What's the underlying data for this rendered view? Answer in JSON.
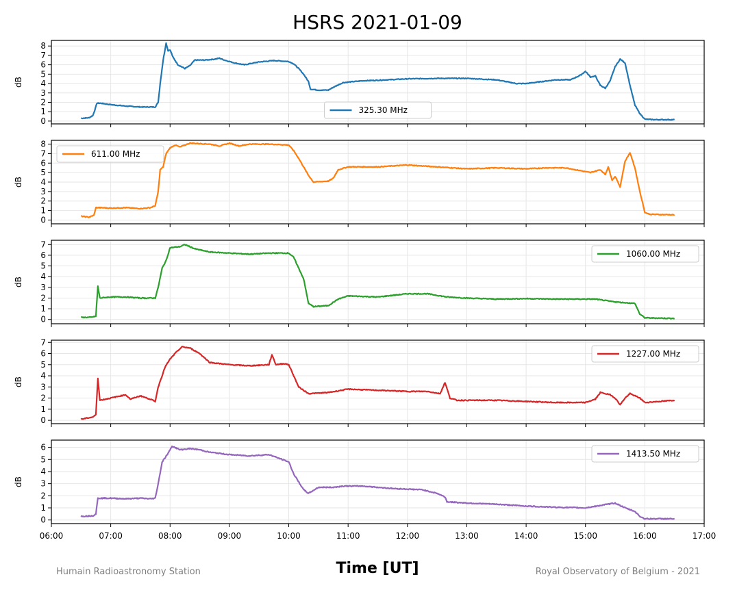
{
  "chart_data": {
    "type": "line",
    "title": "HSRS 2021-01-09",
    "xlabel": "Time [UT]",
    "x_ticks": [
      "06:00",
      "07:00",
      "08:00",
      "09:00",
      "10:00",
      "11:00",
      "12:00",
      "13:00",
      "14:00",
      "15:00",
      "16:00",
      "17:00"
    ],
    "xlim": [
      "06:00",
      "17:00"
    ],
    "grid": true,
    "footer_left": "Humain Radioastronomy Station",
    "footer_right": "Royal Observatory of Belgium - 2021",
    "panels": [
      {
        "name": "325.30 MHz",
        "color": "#1f77b4",
        "ylabel": "dB",
        "ylim": [
          -0.3,
          8.6
        ],
        "yticks": [
          0,
          1,
          2,
          3,
          4,
          5,
          6,
          7,
          8
        ],
        "legend_position": "lower-center",
        "points": [
          [
            "06:30",
            0.3
          ],
          [
            "06:38",
            0.35
          ],
          [
            "06:42",
            0.6
          ],
          [
            "06:44",
            1.2
          ],
          [
            "06:46",
            1.9
          ],
          [
            "06:50",
            1.9
          ],
          [
            "07:00",
            1.75
          ],
          [
            "07:15",
            1.6
          ],
          [
            "07:30",
            1.5
          ],
          [
            "07:45",
            1.5
          ],
          [
            "07:48",
            2.0
          ],
          [
            "07:50",
            4.0
          ],
          [
            "07:53",
            6.5
          ],
          [
            "07:56",
            8.3
          ],
          [
            "07:58",
            7.5
          ],
          [
            "08:00",
            7.6
          ],
          [
            "08:03",
            6.8
          ],
          [
            "08:08",
            6.0
          ],
          [
            "08:15",
            5.6
          ],
          [
            "08:20",
            5.9
          ],
          [
            "08:25",
            6.5
          ],
          [
            "08:35",
            6.5
          ],
          [
            "08:45",
            6.6
          ],
          [
            "08:50",
            6.7
          ],
          [
            "08:55",
            6.5
          ],
          [
            "09:05",
            6.2
          ],
          [
            "09:15",
            6.0
          ],
          [
            "09:30",
            6.3
          ],
          [
            "09:45",
            6.45
          ],
          [
            "10:00",
            6.35
          ],
          [
            "10:05",
            6.1
          ],
          [
            "10:10",
            5.6
          ],
          [
            "10:15",
            5.0
          ],
          [
            "10:20",
            4.2
          ],
          [
            "10:22",
            3.4
          ],
          [
            "10:30",
            3.3
          ],
          [
            "10:40",
            3.3
          ],
          [
            "10:45",
            3.6
          ],
          [
            "10:55",
            4.1
          ],
          [
            "11:15",
            4.3
          ],
          [
            "11:30",
            4.35
          ],
          [
            "12:00",
            4.5
          ],
          [
            "12:30",
            4.55
          ],
          [
            "13:00",
            4.55
          ],
          [
            "13:30",
            4.4
          ],
          [
            "13:50",
            4.0
          ],
          [
            "14:00",
            4.0
          ],
          [
            "14:15",
            4.2
          ],
          [
            "14:30",
            4.4
          ],
          [
            "14:45",
            4.4
          ],
          [
            "14:55",
            4.9
          ],
          [
            "15:00",
            5.3
          ],
          [
            "15:05",
            4.7
          ],
          [
            "15:10",
            4.8
          ],
          [
            "15:15",
            3.8
          ],
          [
            "15:20",
            3.5
          ],
          [
            "15:25",
            4.3
          ],
          [
            "15:30",
            5.8
          ],
          [
            "15:35",
            6.6
          ],
          [
            "15:40",
            6.2
          ],
          [
            "15:45",
            3.8
          ],
          [
            "15:50",
            1.7
          ],
          [
            "15:55",
            0.8
          ],
          [
            "16:00",
            0.2
          ],
          [
            "16:10",
            0.15
          ],
          [
            "16:30",
            0.15
          ]
        ]
      },
      {
        "name": "611.00 MHz",
        "color": "#ff7f0e",
        "ylabel": "dB",
        "ylim": [
          -0.4,
          8.4
        ],
        "yticks": [
          0,
          1,
          2,
          3,
          4,
          5,
          6,
          7,
          8
        ],
        "legend_position": "upper-left",
        "points": [
          [
            "06:30",
            0.4
          ],
          [
            "06:38",
            0.3
          ],
          [
            "06:43",
            0.5
          ],
          [
            "06:45",
            1.3
          ],
          [
            "06:50",
            1.3
          ],
          [
            "07:00",
            1.25
          ],
          [
            "07:15",
            1.3
          ],
          [
            "07:30",
            1.2
          ],
          [
            "07:40",
            1.3
          ],
          [
            "07:45",
            1.5
          ],
          [
            "07:48",
            3.0
          ],
          [
            "07:50",
            5.3
          ],
          [
            "07:53",
            5.6
          ],
          [
            "07:56",
            7.0
          ],
          [
            "08:00",
            7.6
          ],
          [
            "08:05",
            7.9
          ],
          [
            "08:10",
            7.7
          ],
          [
            "08:20",
            8.1
          ],
          [
            "08:40",
            8.0
          ],
          [
            "08:50",
            7.8
          ],
          [
            "09:00",
            8.1
          ],
          [
            "09:10",
            7.8
          ],
          [
            "09:20",
            8.0
          ],
          [
            "09:40",
            8.0
          ],
          [
            "10:00",
            7.9
          ],
          [
            "10:05",
            7.3
          ],
          [
            "10:10",
            6.5
          ],
          [
            "10:15",
            5.6
          ],
          [
            "10:20",
            4.7
          ],
          [
            "10:25",
            4.0
          ],
          [
            "10:40",
            4.1
          ],
          [
            "10:45",
            4.4
          ],
          [
            "10:50",
            5.3
          ],
          [
            "11:00",
            5.6
          ],
          [
            "11:30",
            5.6
          ],
          [
            "12:00",
            5.8
          ],
          [
            "12:30",
            5.6
          ],
          [
            "13:00",
            5.4
          ],
          [
            "13:30",
            5.5
          ],
          [
            "14:00",
            5.4
          ],
          [
            "14:20",
            5.5
          ],
          [
            "14:40",
            5.5
          ],
          [
            "14:50",
            5.3
          ],
          [
            "15:05",
            5.0
          ],
          [
            "15:15",
            5.3
          ],
          [
            "15:20",
            4.8
          ],
          [
            "15:23",
            5.6
          ],
          [
            "15:27",
            4.2
          ],
          [
            "15:30",
            4.6
          ],
          [
            "15:35",
            3.5
          ],
          [
            "15:40",
            6.2
          ],
          [
            "15:45",
            7.1
          ],
          [
            "15:50",
            5.5
          ],
          [
            "15:55",
            3.0
          ],
          [
            "16:00",
            0.8
          ],
          [
            "16:05",
            0.6
          ],
          [
            "16:30",
            0.55
          ]
        ]
      },
      {
        "name": "1060.00 MHz",
        "color": "#2ca02c",
        "ylabel": "dB",
        "ylim": [
          -0.4,
          7.4
        ],
        "yticks": [
          0,
          1,
          2,
          3,
          4,
          5,
          6,
          7
        ],
        "legend_position": "upper-right",
        "points": [
          [
            "06:30",
            0.2
          ],
          [
            "06:40",
            0.2
          ],
          [
            "06:45",
            0.3
          ],
          [
            "06:47",
            3.1
          ],
          [
            "06:49",
            2.0
          ],
          [
            "07:00",
            2.1
          ],
          [
            "07:15",
            2.1
          ],
          [
            "07:30",
            2.0
          ],
          [
            "07:45",
            2.0
          ],
          [
            "07:48",
            3.0
          ],
          [
            "07:52",
            4.8
          ],
          [
            "07:56",
            5.5
          ],
          [
            "08:00",
            6.7
          ],
          [
            "08:10",
            6.8
          ],
          [
            "08:15",
            7.0
          ],
          [
            "08:25",
            6.6
          ],
          [
            "08:40",
            6.3
          ],
          [
            "09:00",
            6.2
          ],
          [
            "09:20",
            6.1
          ],
          [
            "09:40",
            6.2
          ],
          [
            "10:00",
            6.2
          ],
          [
            "10:05",
            5.8
          ],
          [
            "10:10",
            4.8
          ],
          [
            "10:15",
            3.8
          ],
          [
            "10:20",
            1.5
          ],
          [
            "10:25",
            1.2
          ],
          [
            "10:40",
            1.3
          ],
          [
            "10:50",
            1.9
          ],
          [
            "11:00",
            2.2
          ],
          [
            "11:30",
            2.1
          ],
          [
            "12:00",
            2.4
          ],
          [
            "12:20",
            2.4
          ],
          [
            "12:40",
            2.1
          ],
          [
            "13:00",
            2.0
          ],
          [
            "13:30",
            1.9
          ],
          [
            "14:00",
            1.95
          ],
          [
            "14:30",
            1.9
          ],
          [
            "14:50",
            1.9
          ],
          [
            "15:10",
            1.9
          ],
          [
            "15:25",
            1.7
          ],
          [
            "15:35",
            1.6
          ],
          [
            "15:50",
            1.5
          ],
          [
            "15:55",
            0.5
          ],
          [
            "16:00",
            0.15
          ],
          [
            "16:30",
            0.1
          ]
        ]
      },
      {
        "name": "1227.00 MHz",
        "color": "#d62728",
        "ylabel": "dB",
        "ylim": [
          -0.3,
          7.2
        ],
        "yticks": [
          0,
          1,
          2,
          3,
          4,
          5,
          6,
          7
        ],
        "legend_position": "upper-right",
        "points": [
          [
            "06:30",
            0.1
          ],
          [
            "06:42",
            0.3
          ],
          [
            "06:45",
            0.5
          ],
          [
            "06:47",
            3.8
          ],
          [
            "06:49",
            1.8
          ],
          [
            "07:00",
            2.0
          ],
          [
            "07:10",
            2.2
          ],
          [
            "07:15",
            2.3
          ],
          [
            "07:20",
            1.9
          ],
          [
            "07:30",
            2.2
          ],
          [
            "07:40",
            1.9
          ],
          [
            "07:45",
            1.7
          ],
          [
            "07:48",
            3.0
          ],
          [
            "07:55",
            4.8
          ],
          [
            "08:00",
            5.5
          ],
          [
            "08:05",
            6.0
          ],
          [
            "08:12",
            6.6
          ],
          [
            "08:20",
            6.5
          ],
          [
            "08:30",
            6.0
          ],
          [
            "08:40",
            5.2
          ],
          [
            "09:00",
            5.0
          ],
          [
            "09:20",
            4.9
          ],
          [
            "09:40",
            5.0
          ],
          [
            "09:43",
            5.9
          ],
          [
            "09:47",
            5.0
          ],
          [
            "09:55",
            5.1
          ],
          [
            "10:00",
            5.0
          ],
          [
            "10:05",
            4.0
          ],
          [
            "10:10",
            3.0
          ],
          [
            "10:20",
            2.4
          ],
          [
            "10:40",
            2.5
          ],
          [
            "11:00",
            2.8
          ],
          [
            "11:30",
            2.7
          ],
          [
            "12:00",
            2.6
          ],
          [
            "12:20",
            2.6
          ],
          [
            "12:33",
            2.4
          ],
          [
            "12:38",
            3.4
          ],
          [
            "12:43",
            2.0
          ],
          [
            "12:50",
            1.8
          ],
          [
            "13:30",
            1.8
          ],
          [
            "14:00",
            1.7
          ],
          [
            "14:30",
            1.6
          ],
          [
            "15:00",
            1.6
          ],
          [
            "15:10",
            1.9
          ],
          [
            "15:15",
            2.5
          ],
          [
            "15:25",
            2.3
          ],
          [
            "15:30",
            2.0
          ],
          [
            "15:35",
            1.4
          ],
          [
            "15:40",
            2.0
          ],
          [
            "15:45",
            2.4
          ],
          [
            "15:55",
            2.0
          ],
          [
            "16:00",
            1.6
          ],
          [
            "16:30",
            1.8
          ]
        ]
      },
      {
        "name": "1413.50 MHz",
        "color": "#9467bd",
        "ylabel": "dB",
        "ylim": [
          -0.3,
          6.6
        ],
        "yticks": [
          0,
          1,
          2,
          3,
          4,
          5,
          6
        ],
        "legend_position": "upper-right",
        "points": [
          [
            "06:30",
            0.3
          ],
          [
            "06:42",
            0.35
          ],
          [
            "06:45",
            0.5
          ],
          [
            "06:47",
            1.8
          ],
          [
            "07:00",
            1.8
          ],
          [
            "07:15",
            1.75
          ],
          [
            "07:30",
            1.8
          ],
          [
            "07:40",
            1.75
          ],
          [
            "07:45",
            1.8
          ],
          [
            "07:48",
            3.0
          ],
          [
            "07:52",
            4.8
          ],
          [
            "07:58",
            5.5
          ],
          [
            "08:02",
            6.1
          ],
          [
            "08:10",
            5.8
          ],
          [
            "08:20",
            5.9
          ],
          [
            "08:30",
            5.8
          ],
          [
            "08:40",
            5.6
          ],
          [
            "09:00",
            5.4
          ],
          [
            "09:20",
            5.3
          ],
          [
            "09:40",
            5.4
          ],
          [
            "10:00",
            4.8
          ],
          [
            "10:05",
            3.8
          ],
          [
            "10:15",
            2.5
          ],
          [
            "10:20",
            2.2
          ],
          [
            "10:30",
            2.7
          ],
          [
            "10:45",
            2.7
          ],
          [
            "10:55",
            2.8
          ],
          [
            "11:15",
            2.8
          ],
          [
            "11:45",
            2.6
          ],
          [
            "12:15",
            2.5
          ],
          [
            "12:30",
            2.2
          ],
          [
            "12:38",
            1.9
          ],
          [
            "12:40",
            1.5
          ],
          [
            "13:00",
            1.4
          ],
          [
            "13:30",
            1.3
          ],
          [
            "14:00",
            1.15
          ],
          [
            "14:30",
            1.05
          ],
          [
            "15:00",
            1.0
          ],
          [
            "15:15",
            1.2
          ],
          [
            "15:30",
            1.4
          ],
          [
            "15:40",
            1.0
          ],
          [
            "15:50",
            0.7
          ],
          [
            "15:55",
            0.3
          ],
          [
            "16:00",
            0.1
          ],
          [
            "16:30",
            0.1
          ]
        ]
      }
    ]
  }
}
